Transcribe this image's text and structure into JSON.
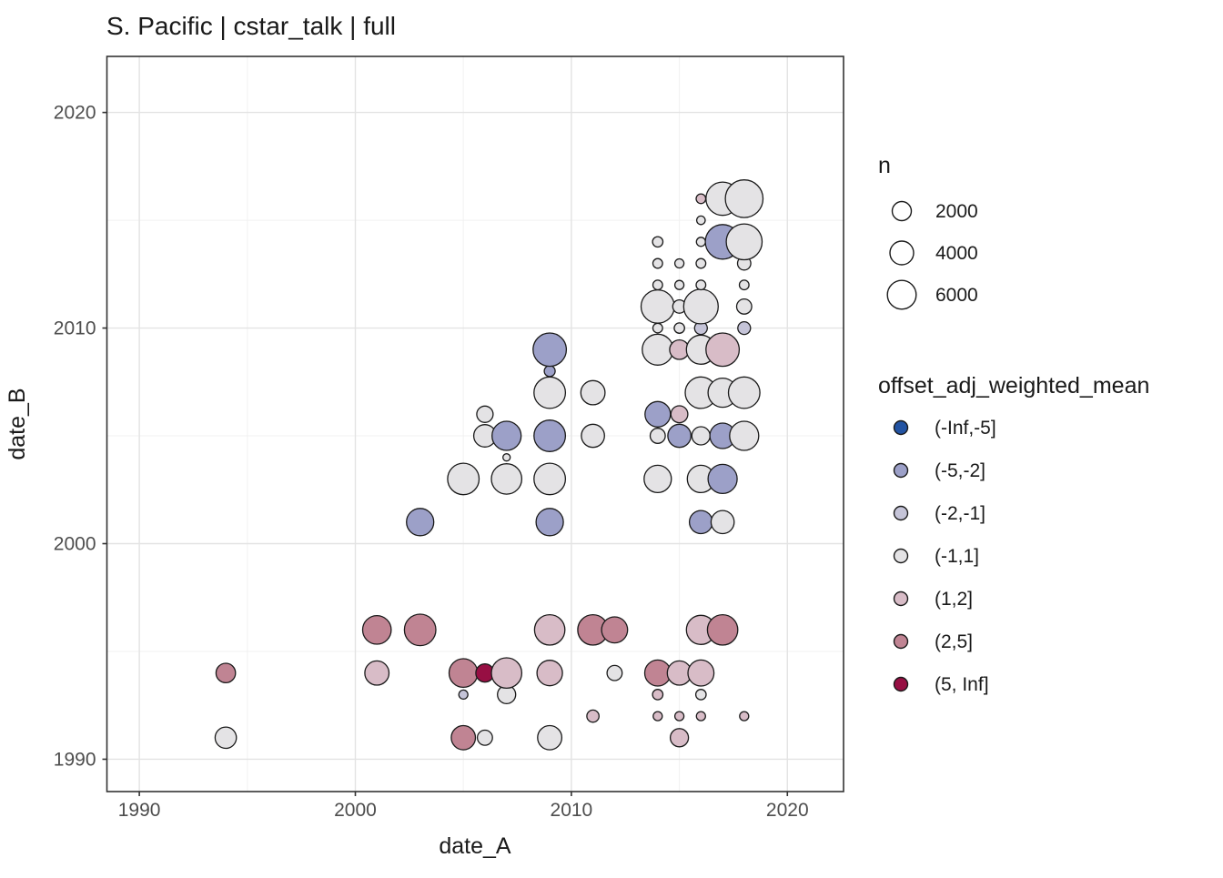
{
  "chart_data": {
    "type": "scatter",
    "title": "S. Pacific | cstar_talk | full",
    "xlabel": "date_A",
    "ylabel": "date_B",
    "xlim": [
      1988.5,
      2022.6
    ],
    "ylim": [
      1988.5,
      2022.6
    ],
    "grid": true,
    "x_major_ticks": [
      1990,
      2000,
      2010,
      2020
    ],
    "x_minor_ticks": [
      1995,
      2005,
      2015
    ],
    "y_major_ticks": [
      1990,
      2000,
      2010,
      2020
    ],
    "y_minor_ticks": [
      1995,
      2005,
      2015
    ],
    "legend_position": "right",
    "size_legend": {
      "title": "n",
      "entries": [
        {
          "label": "2000",
          "n": 2000,
          "r": 10.5
        },
        {
          "label": "4000",
          "n": 4000,
          "r": 13.0
        },
        {
          "label": "6000",
          "n": 6000,
          "r": 15.8
        }
      ]
    },
    "color_legend": {
      "title": "offset_adj_weighted_mean",
      "entries": [
        {
          "label": "(-Inf,-5]",
          "color": "#2253a2"
        },
        {
          "label": "(-5,-2]",
          "color": "#9ca0c8"
        },
        {
          "label": "(-2,-1]",
          "color": "#c5c4d8"
        },
        {
          "label": "(-1,1]",
          "color": "#e4e3e5"
        },
        {
          "label": "(1,2]",
          "color": "#d8bcc7"
        },
        {
          "label": "(2,5]",
          "color": "#c08493"
        },
        {
          "label": "(5, Inf]",
          "color": "#970f43"
        }
      ]
    },
    "point_style": {
      "stroke": "#1a1a1a",
      "stroke_width": 1.3
    },
    "colors": {
      "panel_border": "#333333",
      "grid_major": "#e3e3e3",
      "grid_minor": "#f1f1f1",
      "tick": "#333333",
      "tick_label": "#4d4d4d",
      "text": "#1a1a1a"
    },
    "points": [
      {
        "a": 1994,
        "b": 1991,
        "bin": "(-1,1]",
        "r": 11.7,
        "n": 3100
      },
      {
        "a": 1994,
        "b": 1994,
        "bin": "(2,5]",
        "r": 10.7,
        "n": 2400
      },
      {
        "a": 2001,
        "b": 1994,
        "bin": "(1,2]",
        "r": 13.3,
        "n": 4400
      },
      {
        "a": 2001,
        "b": 1996,
        "bin": "(2,5]",
        "r": 15.7,
        "n": 6700
      },
      {
        "a": 2003,
        "b": 1996,
        "bin": "(2,5]",
        "r": 17.3,
        "n": 8600
      },
      {
        "a": 2003,
        "b": 2001,
        "bin": "(-5,-2]",
        "r": 15,
        "n": 6000
      },
      {
        "a": 2005,
        "b": 1991,
        "bin": "(2,5]",
        "r": 13.3,
        "n": 4400
      },
      {
        "a": 2005,
        "b": 1993,
        "bin": "(-2,-1]",
        "r": 5,
        "n": 150
      },
      {
        "a": 2005,
        "b": 1994,
        "bin": "(2,5]",
        "r": 15.7,
        "n": 6700
      },
      {
        "a": 2005,
        "b": 2003,
        "bin": "(-1,1]",
        "r": 17.3,
        "n": 8600
      },
      {
        "a": 2006,
        "b": 1991,
        "bin": "(-1,1]",
        "r": 8.3,
        "n": 1100
      },
      {
        "a": 2006,
        "b": 1994,
        "bin": "(5, Inf]",
        "r": 10,
        "n": 2000
      },
      {
        "a": 2006,
        "b": 2005,
        "bin": "(-1,1]",
        "r": 12.3,
        "n": 3600
      },
      {
        "a": 2006,
        "b": 2006,
        "bin": "(-1,1]",
        "r": 9,
        "n": 1500
      },
      {
        "a": 2007,
        "b": 1993,
        "bin": "(-1,1]",
        "r": 10,
        "n": 2000
      },
      {
        "a": 2007,
        "b": 1994,
        "bin": "(1,2]",
        "r": 16.7,
        "n": 7900
      },
      {
        "a": 2007,
        "b": 2003,
        "bin": "(-1,1]",
        "r": 16.7,
        "n": 7900
      },
      {
        "a": 2007,
        "b": 2004,
        "bin": "(-1,1]",
        "r": 4,
        "n": 30
      },
      {
        "a": 2007,
        "b": 2005,
        "bin": "(-5,-2]",
        "r": 16,
        "n": 7100
      },
      {
        "a": 2009,
        "b": 1991,
        "bin": "(-1,1]",
        "r": 13.3,
        "n": 4400
      },
      {
        "a": 2009,
        "b": 1994,
        "bin": "(1,2]",
        "r": 14,
        "n": 5000
      },
      {
        "a": 2009,
        "b": 1996,
        "bin": "(1,2]",
        "r": 16.7,
        "n": 7900
      },
      {
        "a": 2009,
        "b": 2001,
        "bin": "(-5,-2]",
        "r": 15,
        "n": 6000
      },
      {
        "a": 2009,
        "b": 2003,
        "bin": "(-1,1]",
        "r": 17.3,
        "n": 8600
      },
      {
        "a": 2009,
        "b": 2005,
        "bin": "(-5,-2]",
        "r": 17.3,
        "n": 8600
      },
      {
        "a": 2009,
        "b": 2007,
        "bin": "(-1,1]",
        "r": 17.3,
        "n": 8600
      },
      {
        "a": 2009,
        "b": 2008,
        "bin": "(-5,-2]",
        "r": 6,
        "n": 350
      },
      {
        "a": 2009,
        "b": 2009,
        "bin": "(-5,-2]",
        "r": 18.3,
        "n": 9800
      },
      {
        "a": 2011,
        "b": 1992,
        "bin": "(1,2]",
        "r": 6.7,
        "n": 500
      },
      {
        "a": 2011,
        "b": 1996,
        "bin": "(2,5]",
        "r": 16.7,
        "n": 7900
      },
      {
        "a": 2011,
        "b": 2005,
        "bin": "(-1,1]",
        "r": 12.7,
        "n": 3900
      },
      {
        "a": 2011,
        "b": 2007,
        "bin": "(-1,1]",
        "r": 13.3,
        "n": 4400
      },
      {
        "a": 2012,
        "b": 1994,
        "bin": "(-1,1]",
        "r": 8.3,
        "n": 1100
      },
      {
        "a": 2012,
        "b": 1996,
        "bin": "(2,5]",
        "r": 14.3,
        "n": 5300
      },
      {
        "a": 2014,
        "b": 1992,
        "bin": "(1,2]",
        "r": 5,
        "n": 150
      },
      {
        "a": 2014,
        "b": 1993,
        "bin": "(1,2]",
        "r": 5.7,
        "n": 270
      },
      {
        "a": 2014,
        "b": 1994,
        "bin": "(2,5]",
        "r": 14.3,
        "n": 5300
      },
      {
        "a": 2014,
        "b": 2003,
        "bin": "(-1,1]",
        "r": 15,
        "n": 6000
      },
      {
        "a": 2014,
        "b": 2005,
        "bin": "(-1,1]",
        "r": 8.3,
        "n": 1100
      },
      {
        "a": 2014,
        "b": 2006,
        "bin": "(-5,-2]",
        "r": 14,
        "n": 5000
      },
      {
        "a": 2014,
        "b": 2009,
        "bin": "(-1,1]",
        "r": 17,
        "n": 8200
      },
      {
        "a": 2014,
        "b": 2010,
        "bin": "(-1,1]",
        "r": 5.3,
        "n": 200
      },
      {
        "a": 2014,
        "b": 2011,
        "bin": "(-1,1]",
        "r": 18.3,
        "n": 9800
      },
      {
        "a": 2014,
        "b": 2012,
        "bin": "(-1,1]",
        "r": 5.3,
        "n": 200
      },
      {
        "a": 2014,
        "b": 2013,
        "bin": "(-1,1]",
        "r": 5.3,
        "n": 200
      },
      {
        "a": 2014,
        "b": 2014,
        "bin": "(-1,1]",
        "r": 5.7,
        "n": 270
      },
      {
        "a": 2015,
        "b": 1991,
        "bin": "(1,2]",
        "r": 10,
        "n": 2000
      },
      {
        "a": 2015,
        "b": 1992,
        "bin": "(1,2]",
        "r": 5,
        "n": 150
      },
      {
        "a": 2015,
        "b": 1994,
        "bin": "(1,2]",
        "r": 13.3,
        "n": 4400
      },
      {
        "a": 2015,
        "b": 2005,
        "bin": "(-5,-2]",
        "r": 12.7,
        "n": 3900
      },
      {
        "a": 2015,
        "b": 2006,
        "bin": "(1,2]",
        "r": 9.3,
        "n": 1600
      },
      {
        "a": 2015,
        "b": 2009,
        "bin": "(1,2]",
        "r": 10.7,
        "n": 2400
      },
      {
        "a": 2015,
        "b": 2010,
        "bin": "(-1,1]",
        "r": 5.7,
        "n": 270
      },
      {
        "a": 2015,
        "b": 2011,
        "bin": "(-1,1]",
        "r": 7.3,
        "n": 700
      },
      {
        "a": 2015,
        "b": 2012,
        "bin": "(-1,1]",
        "r": 5,
        "n": 150
      },
      {
        "a": 2015,
        "b": 2013,
        "bin": "(-1,1]",
        "r": 5,
        "n": 150
      },
      {
        "a": 2016,
        "b": 1992,
        "bin": "(1,2]",
        "r": 5,
        "n": 150
      },
      {
        "a": 2016,
        "b": 1993,
        "bin": "(-1,1]",
        "r": 5.7,
        "n": 270
      },
      {
        "a": 2016,
        "b": 1994,
        "bin": "(1,2]",
        "r": 14.3,
        "n": 5300
      },
      {
        "a": 2016,
        "b": 1996,
        "bin": "(1,2]",
        "r": 16,
        "n": 7100
      },
      {
        "a": 2016,
        "b": 2001,
        "bin": "(-5,-2]",
        "r": 12.7,
        "n": 3900
      },
      {
        "a": 2016,
        "b": 2003,
        "bin": "(-1,1]",
        "r": 15,
        "n": 6000
      },
      {
        "a": 2016,
        "b": 2005,
        "bin": "(-1,1]",
        "r": 10,
        "n": 2000
      },
      {
        "a": 2016,
        "b": 2007,
        "bin": "(-1,1]",
        "r": 17.3,
        "n": 8600
      },
      {
        "a": 2016,
        "b": 2009,
        "bin": "(-1,1]",
        "r": 16,
        "n": 7100
      },
      {
        "a": 2016,
        "b": 2010,
        "bin": "(-2,-1]",
        "r": 7,
        "n": 600
      },
      {
        "a": 2016,
        "b": 2011,
        "bin": "(-1,1]",
        "r": 19,
        "n": 10700
      },
      {
        "a": 2016,
        "b": 2012,
        "bin": "(-1,1]",
        "r": 5.3,
        "n": 200
      },
      {
        "a": 2016,
        "b": 2013,
        "bin": "(-1,1]",
        "r": 5.3,
        "n": 200
      },
      {
        "a": 2016,
        "b": 2014,
        "bin": "(-1,1]",
        "r": 5,
        "n": 150
      },
      {
        "a": 2016,
        "b": 2015,
        "bin": "(-1,1]",
        "r": 4.7,
        "n": 100
      },
      {
        "a": 2016,
        "b": 2016,
        "bin": "(1,2]",
        "r": 5.3,
        "n": 200
      },
      {
        "a": 2017,
        "b": 1996,
        "bin": "(2,5]",
        "r": 16.7,
        "n": 7900
      },
      {
        "a": 2017,
        "b": 2001,
        "bin": "(-1,1]",
        "r": 12.7,
        "n": 3900
      },
      {
        "a": 2017,
        "b": 2003,
        "bin": "(-5,-2]",
        "r": 16,
        "n": 7100
      },
      {
        "a": 2017,
        "b": 2005,
        "bin": "(-5,-2]",
        "r": 14,
        "n": 5000
      },
      {
        "a": 2017,
        "b": 2007,
        "bin": "(-1,1]",
        "r": 16,
        "n": 7100
      },
      {
        "a": 2017,
        "b": 2009,
        "bin": "(1,2]",
        "r": 18.3,
        "n": 9800
      },
      {
        "a": 2017,
        "b": 2014,
        "bin": "(-5,-2]",
        "r": 19,
        "n": 10700
      },
      {
        "a": 2017,
        "b": 2016,
        "bin": "(-1,1]",
        "r": 18.3,
        "n": 9800
      },
      {
        "a": 2018,
        "b": 1992,
        "bin": "(1,2]",
        "r": 5,
        "n": 150
      },
      {
        "a": 2018,
        "b": 2005,
        "bin": "(-1,1]",
        "r": 16,
        "n": 7100
      },
      {
        "a": 2018,
        "b": 2007,
        "bin": "(-1,1]",
        "r": 17.3,
        "n": 8600
      },
      {
        "a": 2018,
        "b": 2010,
        "bin": "(-2,-1]",
        "r": 7,
        "n": 600
      },
      {
        "a": 2018,
        "b": 2011,
        "bin": "(-1,1]",
        "r": 8.3,
        "n": 1100
      },
      {
        "a": 2018,
        "b": 2012,
        "bin": "(-1,1]",
        "r": 5.3,
        "n": 200
      },
      {
        "a": 2018,
        "b": 2013,
        "bin": "(-1,1]",
        "r": 7.3,
        "n": 700
      },
      {
        "a": 2018,
        "b": 2014,
        "bin": "(-1,1]",
        "r": 19.7,
        "n": 11700
      },
      {
        "a": 2018,
        "b": 2016,
        "bin": "(-1,1]",
        "r": 20.7,
        "n": 13200
      }
    ]
  }
}
